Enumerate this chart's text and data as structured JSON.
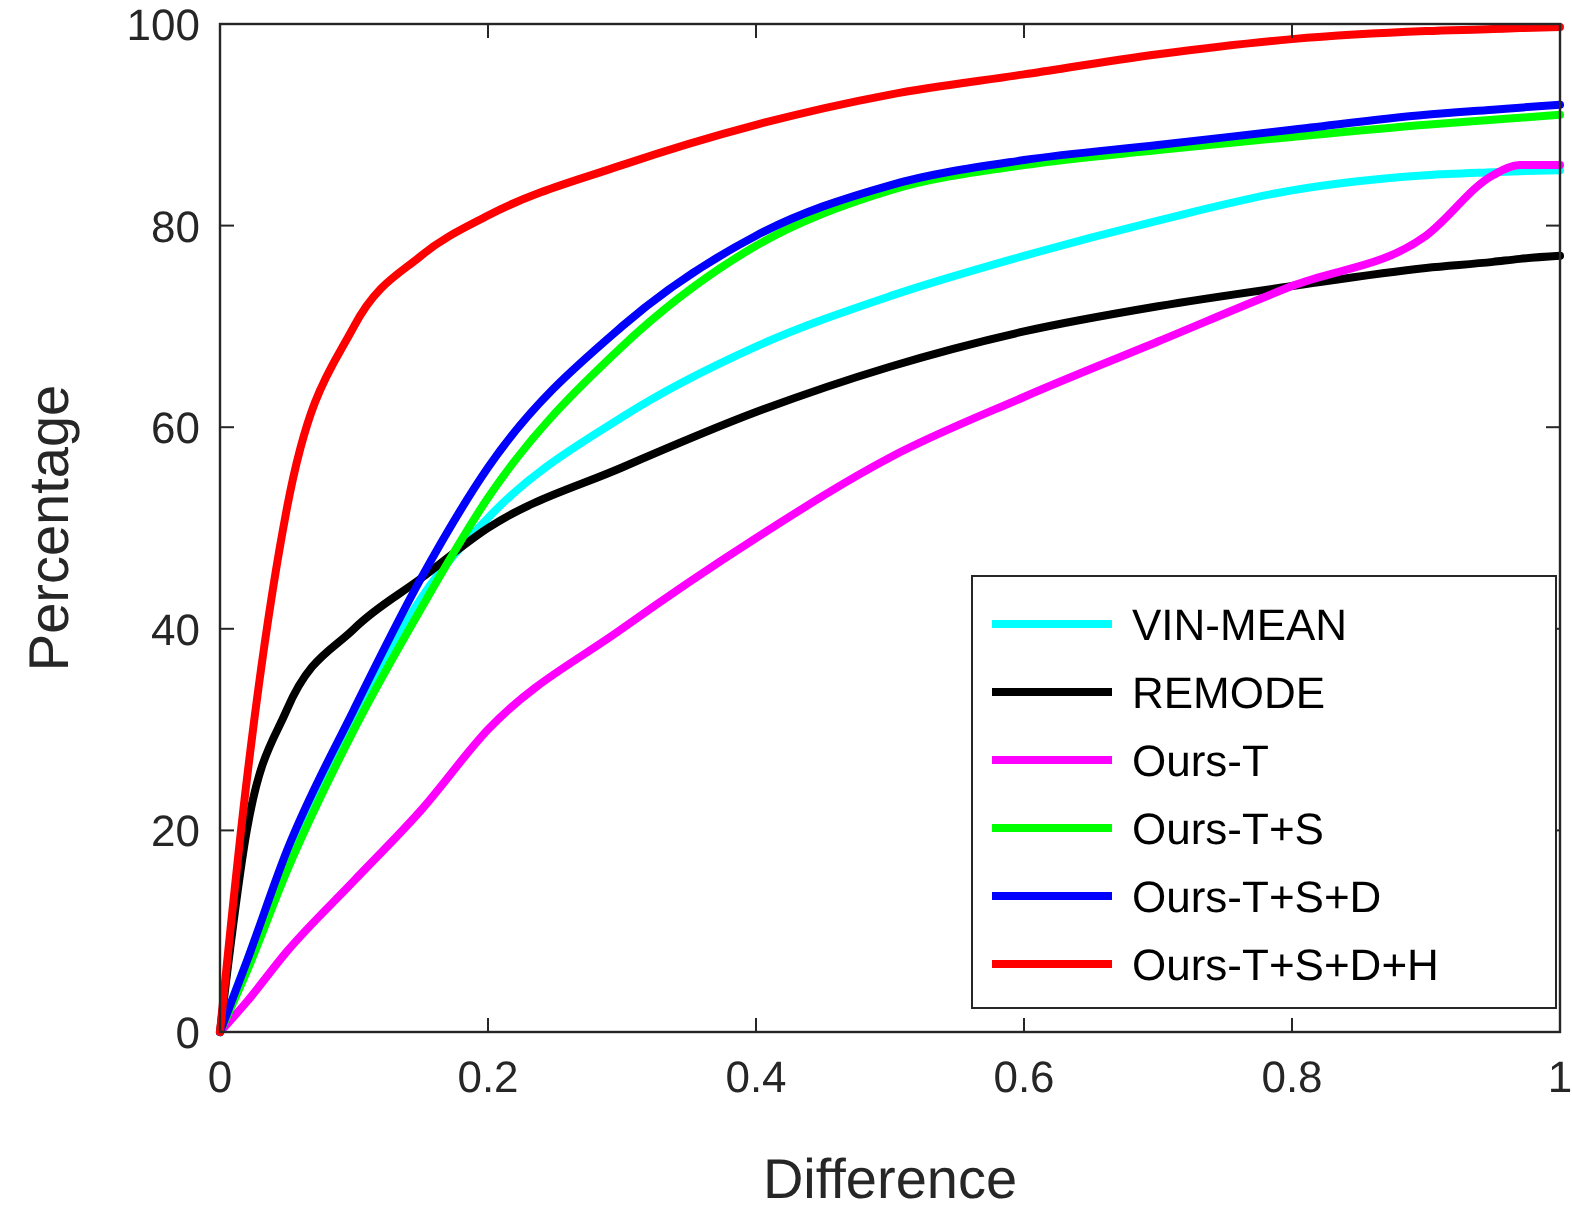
{
  "chart_data": {
    "type": "line",
    "xlabel": "Difference",
    "ylabel": "Percentage",
    "xlim": [
      0,
      1
    ],
    "ylim": [
      0,
      100
    ],
    "xticks": [
      0,
      0.2,
      0.4,
      0.6,
      0.8,
      1
    ],
    "yticks": [
      0,
      20,
      40,
      60,
      80,
      100
    ],
    "grid": false,
    "legend": "bottom right",
    "marker": "none",
    "line_style": "solid",
    "x": [
      0,
      0.02,
      0.05,
      0.1,
      0.15,
      0.2,
      0.3,
      0.4,
      0.5,
      0.6,
      0.7,
      0.8,
      0.9,
      0.95,
      0.97,
      1
    ],
    "series": [
      {
        "name": "VIN-MEAN",
        "color": "#00ffff",
        "values": [
          0,
          7,
          17,
          31,
          43,
          51,
          61,
          68,
          73,
          77,
          80.5,
          83.5,
          85,
          85.3,
          85.4,
          85.5
        ]
      },
      {
        "name": "REMODE",
        "color": "#000000",
        "values": [
          0,
          20,
          32,
          40,
          45,
          50,
          56,
          61.5,
          66,
          69.5,
          72,
          74,
          75.8,
          76.4,
          76.7,
          77
        ]
      },
      {
        "name": "Ours-T",
        "color": "#ff00ff",
        "values": [
          0,
          3,
          8,
          15,
          22,
          30,
          40,
          49,
          57,
          63,
          68.5,
          74,
          79,
          85,
          86,
          86
        ]
      },
      {
        "name": "Ours-T+S",
        "color": "#00ff00",
        "values": [
          0,
          6,
          16,
          30,
          42,
          53,
          68,
          78,
          83.5,
          86,
          87.5,
          88.8,
          90,
          90.5,
          90.7,
          91
        ]
      },
      {
        "name": "Ours-T+S+D",
        "color": "#0000ff",
        "values": [
          0,
          7,
          18,
          32,
          45,
          56,
          70,
          79,
          84,
          86.5,
          88,
          89.5,
          91,
          91.5,
          91.7,
          92
        ]
      },
      {
        "name": "Ours-T+S+D+H",
        "color": "#ff0000",
        "values": [
          0,
          25,
          52,
          70,
          77,
          81,
          86,
          90,
          93,
          95,
          97,
          98.5,
          99.3,
          99.5,
          99.6,
          99.7
        ]
      }
    ]
  }
}
